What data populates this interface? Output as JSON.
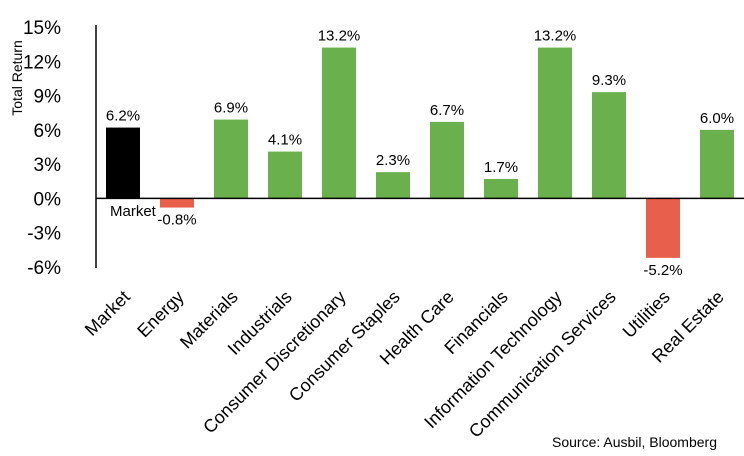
{
  "chart_data": {
    "type": "bar",
    "ylabel": "Total Return",
    "categories": [
      "Market",
      "Energy",
      "Materials",
      "Industrials",
      "Consumer Discretionary",
      "Consumer Staples",
      "Health Care",
      "Financials",
      "Information Technology",
      "Communication Services",
      "Utilities",
      "Real Estate"
    ],
    "values": [
      6.2,
      -0.8,
      6.9,
      4.1,
      13.2,
      2.3,
      6.7,
      1.7,
      13.2,
      9.3,
      -5.2,
      6.0
    ],
    "data_labels": [
      "6.2%",
      "-0.8%",
      "6.9%",
      "4.1%",
      "13.2%",
      "2.3%",
      "6.7%",
      "1.7%",
      "13.2%",
      "9.3%",
      "-5.2%",
      "6.0%"
    ],
    "ylim": [
      -6,
      15
    ],
    "yticks": [
      15,
      12,
      9,
      6,
      3,
      0,
      -3,
      -6
    ],
    "ytick_labels": [
      "15%",
      "12%",
      "9%",
      "6%",
      "3%",
      "0%",
      "-3%",
      "-6%"
    ],
    "grid": false,
    "annotation": "Market",
    "colors": {
      "market": "#000000",
      "positive": "#6ab04c",
      "negative": "#e8604c"
    }
  },
  "source": "Source: Ausbil, Bloomberg"
}
